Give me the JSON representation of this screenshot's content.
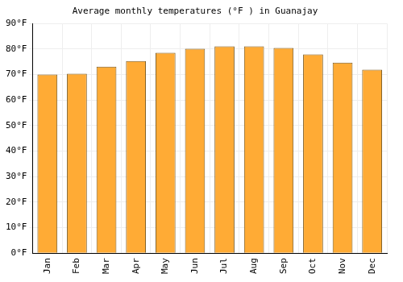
{
  "chart_data": {
    "type": "bar",
    "title": "Average monthly temperatures (°F ) in Guanajay",
    "categories": [
      "Jan",
      "Feb",
      "Mar",
      "Apr",
      "May",
      "Jun",
      "Jul",
      "Aug",
      "Sep",
      "Oct",
      "Nov",
      "Dec"
    ],
    "values": [
      70,
      70.3,
      73.1,
      75.3,
      78.5,
      80.1,
      81.1,
      81.1,
      80.4,
      77.9,
      74.7,
      71.9
    ],
    "color": "#ffab35",
    "ylim": [
      0,
      90
    ],
    "yticks": [
      {
        "value": 0,
        "label": "0°F"
      },
      {
        "value": 10,
        "label": "10°F"
      },
      {
        "value": 20,
        "label": "20°F"
      },
      {
        "value": 30,
        "label": "30°F"
      },
      {
        "value": 40,
        "label": "40°F"
      },
      {
        "value": 50,
        "label": "50°F"
      },
      {
        "value": 60,
        "label": "60°F"
      },
      {
        "value": 70,
        "label": "70°F"
      },
      {
        "value": 80,
        "label": "80°F"
      },
      {
        "value": 90,
        "label": "90°F"
      }
    ],
    "grid": true
  }
}
